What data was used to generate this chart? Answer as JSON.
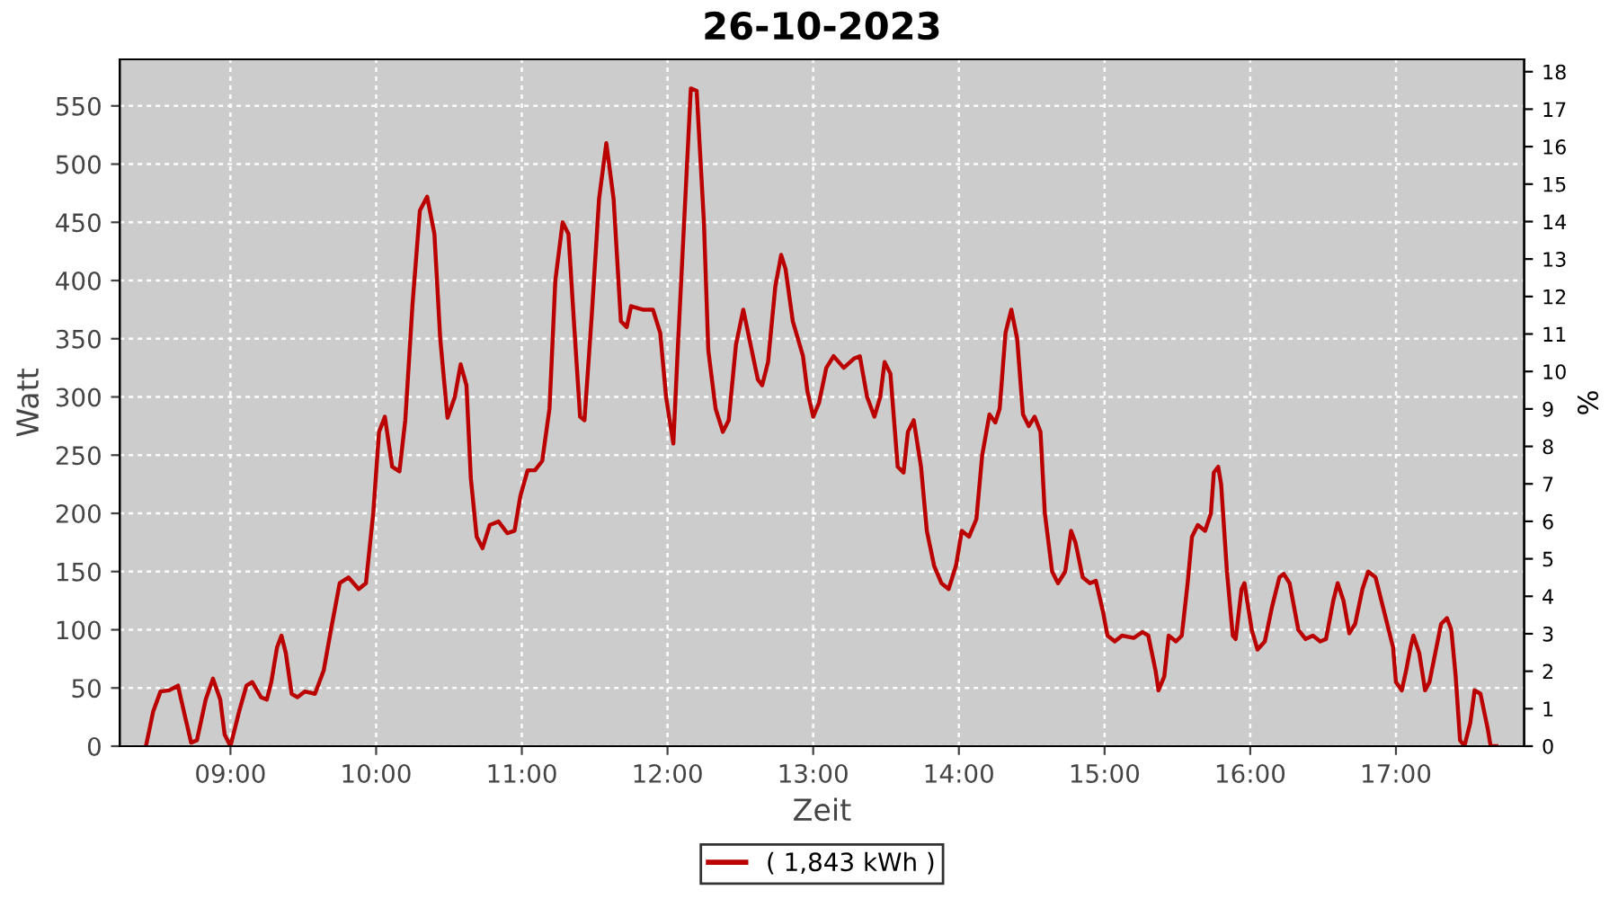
{
  "chart_data": {
    "type": "line",
    "title": "26-10-2023",
    "xlabel": "Zeit",
    "ylabel": "Watt",
    "y2label": "%",
    "xlim": [
      8.24,
      17.88
    ],
    "ylim": [
      0,
      590
    ],
    "y2lim": [
      0,
      18.33
    ],
    "xticks": [
      {
        "value": 9,
        "label": "09:00"
      },
      {
        "value": 10,
        "label": "10:00"
      },
      {
        "value": 11,
        "label": "11:00"
      },
      {
        "value": 12,
        "label": "12:00"
      },
      {
        "value": 13,
        "label": "13:00"
      },
      {
        "value": 14,
        "label": "14:00"
      },
      {
        "value": 15,
        "label": "15:00"
      },
      {
        "value": 16,
        "label": "16:00"
      },
      {
        "value": 17,
        "label": "17:00"
      }
    ],
    "yticks": [
      0,
      50,
      100,
      150,
      200,
      250,
      300,
      350,
      400,
      450,
      500,
      550
    ],
    "y2ticks": [
      0,
      1,
      2,
      3,
      4,
      5,
      6,
      7,
      8,
      9,
      10,
      11,
      12,
      13,
      14,
      15,
      16,
      17,
      18
    ],
    "grid": true,
    "legend": "bottom",
    "marker": "none",
    "line_style": "solid",
    "series": [
      {
        "name": "( 1,843 kWh )",
        "color": "#bb0000",
        "x": [
          8.42,
          8.47,
          8.52,
          8.58,
          8.64,
          8.68,
          8.73,
          8.77,
          8.83,
          8.88,
          8.93,
          8.96,
          9.0,
          9.06,
          9.11,
          9.15,
          9.21,
          9.25,
          9.28,
          9.32,
          9.35,
          9.38,
          9.42,
          9.46,
          9.51,
          9.58,
          9.64,
          9.69,
          9.75,
          9.81,
          9.88,
          9.93,
          9.98,
          10.02,
          10.06,
          10.11,
          10.16,
          10.2,
          10.25,
          10.3,
          10.35,
          10.4,
          10.44,
          10.49,
          10.54,
          10.58,
          10.62,
          10.65,
          10.69,
          10.73,
          10.78,
          10.84,
          10.9,
          10.95,
          10.99,
          11.04,
          11.09,
          11.14,
          11.19,
          11.23,
          11.28,
          11.32,
          11.36,
          11.4,
          11.43,
          11.48,
          11.53,
          11.58,
          11.63,
          11.68,
          11.72,
          11.75,
          11.83,
          11.9,
          11.95,
          11.99,
          12.04,
          12.07,
          12.12,
          12.16,
          12.2,
          12.25,
          12.28,
          12.33,
          12.38,
          12.42,
          12.47,
          12.52,
          12.57,
          12.62,
          12.65,
          12.69,
          12.74,
          12.78,
          12.81,
          12.86,
          12.93,
          12.96,
          13.0,
          13.04,
          13.09,
          13.14,
          13.21,
          13.28,
          13.32,
          13.37,
          13.42,
          13.46,
          13.49,
          13.53,
          13.58,
          13.62,
          13.65,
          13.69,
          13.74,
          13.78,
          13.83,
          13.88,
          13.93,
          13.98,
          14.02,
          14.07,
          14.12,
          14.16,
          14.21,
          14.25,
          14.28,
          14.32,
          14.36,
          14.4,
          14.44,
          14.48,
          14.52,
          14.56,
          14.59,
          14.64,
          14.68,
          14.73,
          14.77,
          14.8,
          14.85,
          14.9,
          14.94,
          14.99,
          15.02,
          15.07,
          15.12,
          15.2,
          15.26,
          15.3,
          15.35,
          15.37,
          15.41,
          15.44,
          15.49,
          15.53,
          15.57,
          15.6,
          15.64,
          15.69,
          15.73,
          15.75,
          15.78,
          15.8,
          15.84,
          15.88,
          15.9,
          15.94,
          15.96,
          16.01,
          16.05,
          16.1,
          16.15,
          16.2,
          16.23,
          16.27,
          16.33,
          16.38,
          16.43,
          16.48,
          16.52,
          16.57,
          16.6,
          16.64,
          16.68,
          16.72,
          16.77,
          16.81,
          16.86,
          16.91,
          16.98,
          17.0,
          17.04,
          17.07,
          17.1,
          17.12,
          17.16,
          17.2,
          17.23,
          17.27,
          17.31,
          17.35,
          17.38,
          17.41,
          17.44,
          17.47,
          17.51,
          17.54,
          17.58,
          17.63,
          17.65,
          17.69
        ],
        "values": [
          0,
          30,
          47,
          48,
          52,
          30,
          3,
          5,
          40,
          58,
          40,
          10,
          0,
          30,
          52,
          55,
          42,
          40,
          55,
          85,
          95,
          80,
          45,
          42,
          47,
          45,
          65,
          100,
          140,
          145,
          135,
          140,
          200,
          270,
          283,
          240,
          236,
          280,
          380,
          460,
          472,
          440,
          350,
          282,
          300,
          328,
          310,
          230,
          180,
          170,
          190,
          193,
          183,
          185,
          215,
          237,
          237,
          245,
          290,
          400,
          450,
          440,
          360,
          283,
          280,
          370,
          470,
          518,
          470,
          365,
          360,
          378,
          375,
          375,
          355,
          300,
          260,
          340,
          465,
          565,
          563,
          450,
          340,
          290,
          270,
          280,
          345,
          375,
          345,
          315,
          310,
          330,
          395,
          422,
          410,
          365,
          335,
          305,
          283,
          295,
          325,
          335,
          325,
          333,
          335,
          300,
          283,
          300,
          330,
          320,
          240,
          235,
          270,
          280,
          240,
          185,
          155,
          140,
          135,
          155,
          185,
          180,
          195,
          250,
          285,
          278,
          290,
          355,
          375,
          350,
          285,
          275,
          283,
          270,
          200,
          150,
          140,
          150,
          185,
          175,
          145,
          140,
          142,
          115,
          95,
          90,
          95,
          93,
          98,
          95,
          65,
          48,
          60,
          95,
          90,
          95,
          140,
          180,
          190,
          185,
          200,
          235,
          240,
          225,
          150,
          95,
          92,
          135,
          140,
          100,
          83,
          90,
          120,
          145,
          148,
          140,
          100,
          92,
          95,
          90,
          92,
          125,
          140,
          125,
          97,
          105,
          135,
          150,
          145,
          120,
          85,
          55,
          48,
          65,
          85,
          95,
          80,
          48,
          55,
          80,
          105,
          110,
          100,
          60,
          5,
          0,
          20,
          48,
          45,
          15,
          0,
          0
        ]
      }
    ]
  }
}
